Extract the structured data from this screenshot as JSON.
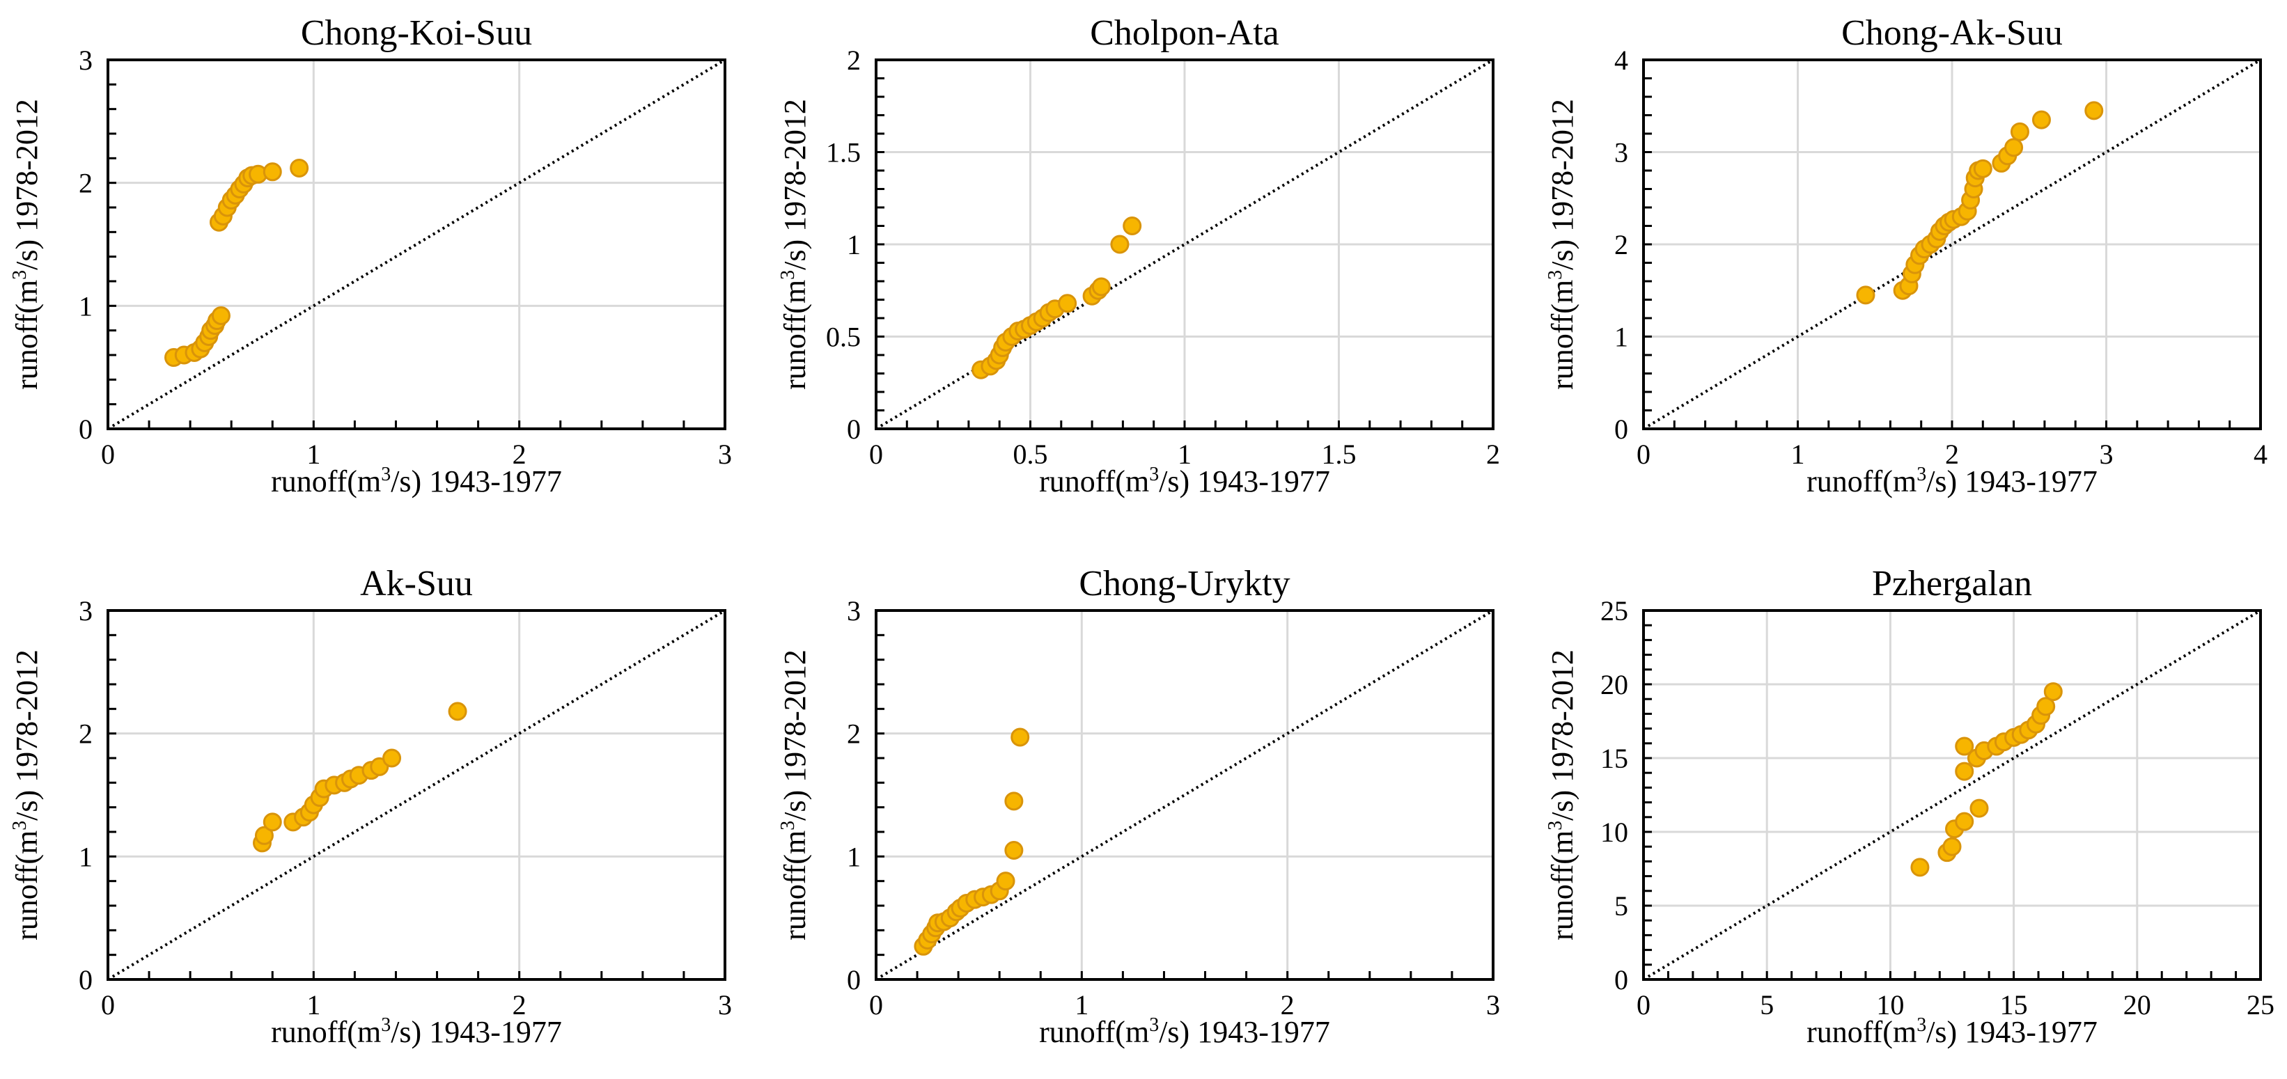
{
  "chart_data": [
    {
      "type": "scatter",
      "title": "Chong-Koi-Suu",
      "xlabel": "runoff(m3/s) 1943-1977",
      "ylabel": "runoff(m3/s) 1978-2012",
      "xlim": [
        0,
        3
      ],
      "ylim": [
        0,
        3
      ],
      "xticks": [
        0,
        1,
        2,
        3
      ],
      "yticks": [
        0,
        1,
        2,
        3
      ],
      "xticklabels": [
        "0",
        "1",
        "2",
        "3"
      ],
      "yticklabels": [
        "0",
        "1",
        "2",
        "3"
      ],
      "minor_step": 0.2,
      "reference_line": "1:1 dotted",
      "grid": true,
      "points": [
        [
          0.32,
          0.58
        ],
        [
          0.37,
          0.6
        ],
        [
          0.42,
          0.62
        ],
        [
          0.45,
          0.65
        ],
        [
          0.47,
          0.7
        ],
        [
          0.49,
          0.75
        ],
        [
          0.5,
          0.8
        ],
        [
          0.52,
          0.84
        ],
        [
          0.53,
          0.88
        ],
        [
          0.55,
          0.92
        ],
        [
          0.54,
          1.68
        ],
        [
          0.56,
          1.73
        ],
        [
          0.58,
          1.8
        ],
        [
          0.6,
          1.86
        ],
        [
          0.62,
          1.9
        ],
        [
          0.64,
          1.95
        ],
        [
          0.66,
          1.99
        ],
        [
          0.68,
          2.04
        ],
        [
          0.7,
          2.06
        ],
        [
          0.73,
          2.07
        ],
        [
          0.8,
          2.09
        ],
        [
          0.93,
          2.12
        ]
      ]
    },
    {
      "type": "scatter",
      "title": "Cholpon-Ata",
      "xlabel": "runoff(m3/s) 1943-1977",
      "ylabel": "runoff(m3/s) 1978-2012",
      "xlim": [
        0,
        2
      ],
      "ylim": [
        0,
        2
      ],
      "xticks": [
        0,
        0.5,
        1,
        1.5,
        2
      ],
      "yticks": [
        0,
        0.5,
        1,
        1.5,
        2
      ],
      "xticklabels": [
        "0",
        "0.5",
        "1",
        "1.5",
        "2"
      ],
      "yticklabels": [
        "0",
        "0.5",
        "1",
        "1.5",
        "2"
      ],
      "minor_step": 0.1,
      "reference_line": "1:1 dotted",
      "grid": true,
      "points": [
        [
          0.34,
          0.32
        ],
        [
          0.37,
          0.34
        ],
        [
          0.39,
          0.37
        ],
        [
          0.4,
          0.4
        ],
        [
          0.41,
          0.44
        ],
        [
          0.42,
          0.47
        ],
        [
          0.44,
          0.5
        ],
        [
          0.46,
          0.53
        ],
        [
          0.48,
          0.54
        ],
        [
          0.5,
          0.56
        ],
        [
          0.52,
          0.58
        ],
        [
          0.54,
          0.6
        ],
        [
          0.56,
          0.63
        ],
        [
          0.58,
          0.65
        ],
        [
          0.62,
          0.68
        ],
        [
          0.7,
          0.72
        ],
        [
          0.72,
          0.75
        ],
        [
          0.73,
          0.77
        ],
        [
          0.79,
          1.0
        ],
        [
          0.83,
          1.1
        ]
      ]
    },
    {
      "type": "scatter",
      "title": "Chong-Ak-Suu",
      "xlabel": "runoff(m3/s) 1943-1977",
      "ylabel": "runoff(m3/s) 1978-2012",
      "xlim": [
        0,
        4
      ],
      "ylim": [
        0,
        4
      ],
      "xticks": [
        0,
        1,
        2,
        3,
        4
      ],
      "yticks": [
        0,
        1,
        2,
        3,
        4
      ],
      "xticklabels": [
        "0",
        "1",
        "2",
        "3",
        "4"
      ],
      "yticklabels": [
        "0",
        "1",
        "2",
        "3",
        "4"
      ],
      "minor_step": 0.2,
      "reference_line": "1:1 dotted",
      "grid": true,
      "points": [
        [
          1.44,
          1.45
        ],
        [
          1.68,
          1.5
        ],
        [
          1.72,
          1.55
        ],
        [
          1.74,
          1.68
        ],
        [
          1.76,
          1.78
        ],
        [
          1.79,
          1.88
        ],
        [
          1.82,
          1.95
        ],
        [
          1.86,
          2.0
        ],
        [
          1.9,
          2.06
        ],
        [
          1.92,
          2.14
        ],
        [
          1.95,
          2.2
        ],
        [
          1.98,
          2.24
        ],
        [
          2.01,
          2.27
        ],
        [
          2.06,
          2.3
        ],
        [
          2.1,
          2.36
        ],
        [
          2.12,
          2.48
        ],
        [
          2.14,
          2.6
        ],
        [
          2.15,
          2.72
        ],
        [
          2.17,
          2.8
        ],
        [
          2.2,
          2.82
        ],
        [
          2.32,
          2.88
        ],
        [
          2.36,
          2.96
        ],
        [
          2.4,
          3.05
        ],
        [
          2.44,
          3.22
        ],
        [
          2.58,
          3.35
        ],
        [
          2.92,
          3.45
        ]
      ]
    },
    {
      "type": "scatter",
      "title": "Ak-Suu",
      "xlabel": "runoff(m3/s) 1943-1977",
      "ylabel": "runoff(m3/s) 1978-2012",
      "xlim": [
        0,
        3
      ],
      "ylim": [
        0,
        3
      ],
      "xticks": [
        0,
        1,
        2,
        3
      ],
      "yticks": [
        0,
        1,
        2,
        3
      ],
      "xticklabels": [
        "0",
        "1",
        "2",
        "3"
      ],
      "yticklabels": [
        "0",
        "1",
        "2",
        "3"
      ],
      "minor_step": 0.2,
      "reference_line": "1:1 dotted",
      "grid": true,
      "points": [
        [
          0.75,
          1.11
        ],
        [
          0.76,
          1.17
        ],
        [
          0.8,
          1.28
        ],
        [
          0.9,
          1.28
        ],
        [
          0.95,
          1.32
        ],
        [
          0.98,
          1.36
        ],
        [
          1.0,
          1.42
        ],
        [
          1.03,
          1.48
        ],
        [
          1.05,
          1.55
        ],
        [
          1.1,
          1.58
        ],
        [
          1.15,
          1.6
        ],
        [
          1.18,
          1.63
        ],
        [
          1.22,
          1.66
        ],
        [
          1.28,
          1.7
        ],
        [
          1.32,
          1.73
        ],
        [
          1.38,
          1.8
        ],
        [
          1.7,
          2.18
        ]
      ]
    },
    {
      "type": "scatter",
      "title": "Chong-Urykty",
      "xlabel": "runoff(m3/s) 1943-1977",
      "ylabel": "runoff(m3/s) 1978-2012",
      "xlim": [
        0,
        3
      ],
      "ylim": [
        0,
        3
      ],
      "xticks": [
        0,
        1,
        2,
        3
      ],
      "yticks": [
        0,
        1,
        2,
        3
      ],
      "xticklabels": [
        "0",
        "1",
        "2",
        "3"
      ],
      "yticklabels": [
        "0",
        "1",
        "2",
        "3"
      ],
      "minor_step": 0.2,
      "reference_line": "1:1 dotted",
      "grid": true,
      "points": [
        [
          0.23,
          0.27
        ],
        [
          0.25,
          0.32
        ],
        [
          0.27,
          0.37
        ],
        [
          0.29,
          0.42
        ],
        [
          0.3,
          0.46
        ],
        [
          0.33,
          0.47
        ],
        [
          0.36,
          0.5
        ],
        [
          0.39,
          0.55
        ],
        [
          0.41,
          0.58
        ],
        [
          0.44,
          0.62
        ],
        [
          0.48,
          0.65
        ],
        [
          0.52,
          0.67
        ],
        [
          0.56,
          0.69
        ],
        [
          0.6,
          0.72
        ],
        [
          0.63,
          0.8
        ],
        [
          0.67,
          1.05
        ],
        [
          0.67,
          1.45
        ],
        [
          0.7,
          1.97
        ]
      ]
    },
    {
      "type": "scatter",
      "title": "Pzhergalan",
      "xlabel": "runoff(m3/s) 1943-1977",
      "ylabel": "runoff(m3/s) 1978-2012",
      "xlim": [
        0,
        25
      ],
      "ylim": [
        0,
        25
      ],
      "xticks": [
        0,
        5,
        10,
        15,
        20,
        25
      ],
      "yticks": [
        0,
        5,
        10,
        15,
        20,
        25
      ],
      "xticklabels": [
        "0",
        "5",
        "10",
        "15",
        "20",
        "25"
      ],
      "yticklabels": [
        "0",
        "5",
        "10",
        "15",
        "20",
        "25"
      ],
      "minor_step": 1,
      "reference_line": "1:1 dotted",
      "grid": true,
      "points": [
        [
          11.2,
          7.6
        ],
        [
          12.3,
          8.6
        ],
        [
          12.5,
          9.0
        ],
        [
          12.6,
          10.2
        ],
        [
          13.0,
          10.7
        ],
        [
          13.6,
          11.6
        ],
        [
          13.0,
          14.1
        ],
        [
          13.0,
          15.8
        ],
        [
          13.5,
          15.0
        ],
        [
          13.8,
          15.5
        ],
        [
          14.3,
          15.8
        ],
        [
          14.6,
          16.1
        ],
        [
          15.0,
          16.4
        ],
        [
          15.3,
          16.6
        ],
        [
          15.6,
          16.9
        ],
        [
          15.9,
          17.3
        ],
        [
          16.1,
          17.9
        ],
        [
          16.3,
          18.5
        ],
        [
          16.6,
          19.5
        ]
      ]
    }
  ]
}
